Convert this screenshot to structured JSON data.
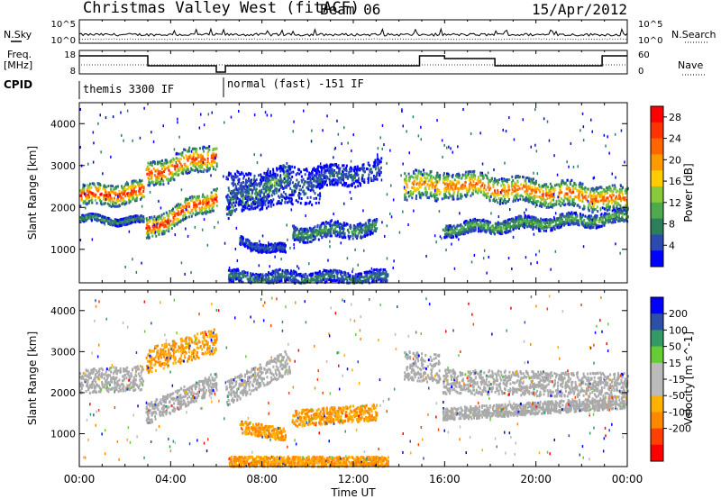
{
  "header": {
    "station": "Christmas Valley West (fitACF)",
    "beam": "Beam 06",
    "date": "15/Apr/2012"
  },
  "panels_left_labels": {
    "nsky": "N.Sky",
    "freq_l1": "Freq.",
    "freq_l2": "[MHz]",
    "cpid": "CPID"
  },
  "panels_right_labels": {
    "nsearch": "N.Search",
    "nave": "Nave"
  },
  "noise_axis": {
    "left_top": "10^5",
    "left_bottom": "10^0",
    "right_top": "10^5",
    "right_bottom": "10^0"
  },
  "freq_axis": {
    "left_top": "18",
    "left_bottom": "8",
    "right_top": "60",
    "right_bottom": "0"
  },
  "cpid_labels": {
    "first": "themis 3300 IF",
    "second": "normal (fast) -151 IF"
  },
  "colors": {
    "power_bar": [
      "#0000ff",
      "#2c4bb2",
      "#2b7f5a",
      "#4faa4f",
      "#88c93a",
      "#ffcc00",
      "#ff9900",
      "#ff6600",
      "#ff3300",
      "#ff0000"
    ],
    "velocity_bar": [
      "#ff0000",
      "#ff4000",
      "#ff8800",
      "#ffb000",
      "#bbbbbb",
      "#bbbbbb",
      "#66cc33",
      "#339966",
      "#2d4fa8",
      "#0000ff"
    ],
    "ground": "#aaaaaa"
  },
  "chart_data": [
    {
      "type": "heatmap",
      "name": "power",
      "xlabel": "",
      "ylabel": "Slant Range [km]",
      "x_ticks": [
        "00:00",
        "04:00",
        "08:00",
        "12:00",
        "16:00",
        "20:00",
        "00:00"
      ],
      "x_range_hours": [
        0,
        24
      ],
      "y_range_km": [
        200,
        4500
      ],
      "y_ticks": [
        1000,
        2000,
        3000,
        4000
      ],
      "colorbar": {
        "label": "Power [dB]",
        "ticks": [
          4,
          8,
          12,
          16,
          20,
          24,
          28
        ],
        "range": [
          0,
          30
        ]
      }
    },
    {
      "type": "heatmap",
      "name": "velocity",
      "xlabel": "Time UT",
      "ylabel": "Slant Range [km]",
      "x_ticks": [
        "00:00",
        "04:00",
        "08:00",
        "12:00",
        "16:00",
        "20:00",
        "00:00"
      ],
      "x_range_hours": [
        0,
        24
      ],
      "y_range_km": [
        200,
        4500
      ],
      "y_ticks": [
        1000,
        2000,
        3000,
        4000
      ],
      "colorbar": {
        "label": "Velocity [m s^-1]",
        "ticks": [
          200,
          100,
          50,
          15,
          -15,
          -50,
          -100,
          -200
        ]
      }
    }
  ]
}
